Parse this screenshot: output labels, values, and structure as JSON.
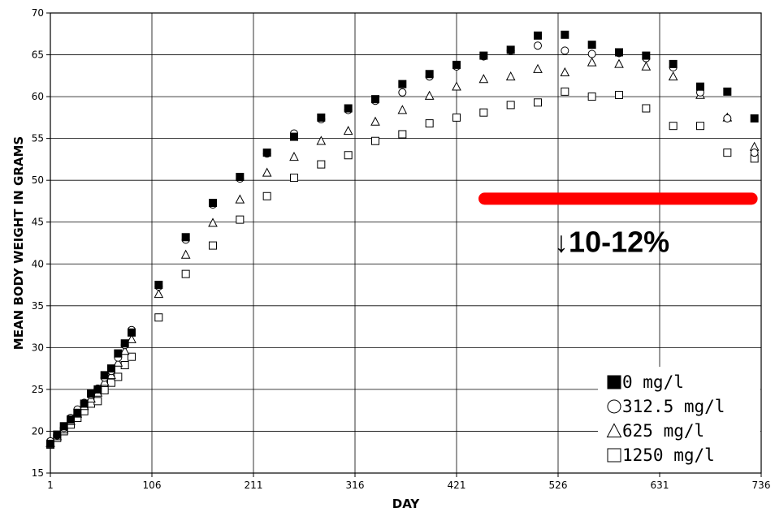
{
  "chart_data": {
    "type": "scatter",
    "title": "",
    "xlabel": "DAY",
    "ylabel": "MEAN BODY WEIGHT IN GRAMS",
    "xlim": [
      1,
      736
    ],
    "ylim": [
      15,
      70
    ],
    "x_ticks": [
      1,
      106,
      211,
      316,
      421,
      526,
      631,
      736
    ],
    "y_ticks": [
      15,
      20,
      25,
      30,
      35,
      40,
      45,
      50,
      55,
      60,
      65,
      70
    ],
    "grid": true,
    "legend_position": "bottom-right",
    "series": [
      {
        "name": "0 mg/l",
        "marker": "filled-square",
        "x": [
          1,
          8,
          15,
          22,
          29,
          36,
          43,
          50,
          57,
          64,
          71,
          78,
          85,
          113,
          141,
          169,
          197,
          225,
          253,
          281,
          309,
          337,
          365,
          393,
          421,
          449,
          477,
          505,
          533,
          561,
          589,
          617,
          645,
          673,
          701,
          729
        ],
        "y": [
          18.5,
          19.6,
          20.6,
          21.4,
          22.2,
          23.3,
          24.5,
          25.0,
          26.7,
          27.5,
          29.3,
          30.5,
          31.8,
          37.5,
          43.2,
          47.3,
          50.4,
          53.3,
          55.2,
          57.5,
          58.6,
          59.7,
          61.5,
          62.7,
          63.8,
          64.9,
          65.6,
          67.3,
          67.4,
          66.2,
          65.3,
          64.9,
          63.9,
          61.2,
          60.6,
          57.4
        ]
      },
      {
        "name": "312.5  mg/l",
        "marker": "open-circle",
        "x": [
          1,
          8,
          15,
          22,
          29,
          36,
          43,
          50,
          57,
          64,
          71,
          78,
          85,
          113,
          141,
          169,
          197,
          225,
          253,
          281,
          309,
          337,
          365,
          393,
          421,
          449,
          477,
          505,
          533,
          561,
          589,
          617,
          645,
          673,
          701,
          729
        ],
        "y": [
          18.8,
          19.5,
          20.4,
          21.6,
          22.6,
          23.4,
          24.3,
          25.1,
          26.4,
          27.2,
          28.8,
          30.3,
          32.1,
          37.3,
          42.9,
          47.1,
          50.2,
          53.2,
          55.6,
          57.3,
          58.4,
          59.5,
          60.5,
          62.4,
          63.6,
          64.8,
          65.5,
          66.1,
          65.5,
          65.1,
          65.2,
          64.6,
          63.5,
          60.5,
          57.4,
          53.3
        ]
      },
      {
        "name": "625 mg/l",
        "marker": "open-triangle",
        "x": [
          1,
          8,
          15,
          22,
          29,
          36,
          43,
          50,
          57,
          64,
          71,
          78,
          85,
          113,
          141,
          169,
          197,
          225,
          253,
          281,
          309,
          337,
          365,
          393,
          421,
          449,
          477,
          505,
          533,
          561,
          589,
          617,
          645,
          673,
          701,
          729
        ],
        "y": [
          18.6,
          19.4,
          20.2,
          21.2,
          22.1,
          23.0,
          23.9,
          24.6,
          25.9,
          26.7,
          28.2,
          29.6,
          31.0,
          36.4,
          41.1,
          44.9,
          47.7,
          50.9,
          52.8,
          54.7,
          55.9,
          57.0,
          58.4,
          60.1,
          61.2,
          62.1,
          62.4,
          63.3,
          62.9,
          64.1,
          63.9,
          63.6,
          62.4,
          60.2,
          57.5,
          54.0
        ]
      },
      {
        "name": "1250 mg/l",
        "marker": "open-square",
        "x": [
          1,
          8,
          15,
          22,
          29,
          36,
          43,
          50,
          57,
          64,
          71,
          78,
          85,
          113,
          141,
          169,
          197,
          225,
          253,
          281,
          309,
          337,
          365,
          393,
          421,
          449,
          477,
          505,
          533,
          561,
          589,
          617,
          645,
          673,
          701,
          729
        ],
        "y": [
          18.4,
          19.2,
          20.0,
          20.8,
          21.6,
          22.4,
          23.3,
          23.6,
          24.9,
          25.8,
          26.5,
          27.9,
          28.9,
          33.6,
          38.8,
          42.2,
          45.3,
          48.1,
          50.3,
          51.9,
          53.0,
          54.7,
          55.5,
          56.8,
          57.5,
          58.1,
          59.0,
          59.3,
          60.6,
          60.0,
          60.2,
          58.6,
          56.5,
          56.5,
          53.3,
          52.6
        ]
      }
    ],
    "annotations": [
      {
        "type": "bar",
        "color": "#ff0000",
        "x_start": 450,
        "x_end": 726,
        "y": 47.8
      },
      {
        "type": "text",
        "text": "↓10-12%",
        "x": 532,
        "y": 42
      }
    ]
  }
}
